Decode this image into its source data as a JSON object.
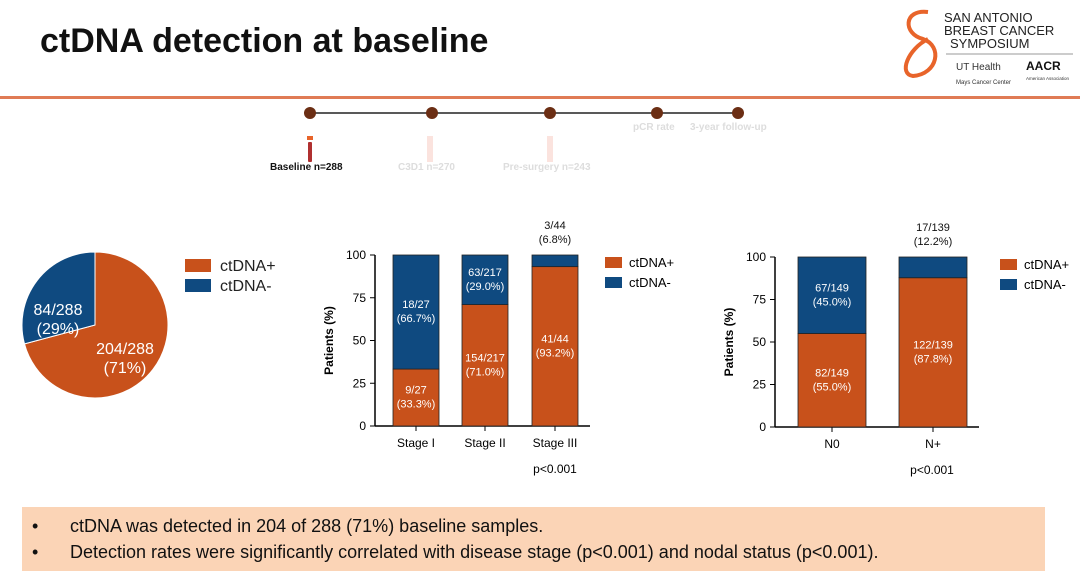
{
  "title": "ctDNA detection at baseline",
  "logo": {
    "text": "SAN ANTONIO BREAST CANCER SYMPOSIUM®",
    "partners": [
      "UT Health San Antonio Mays Cancer Center",
      "AACR American Association for Cancer Research"
    ]
  },
  "timeline": {
    "points": [
      {
        "label": "Baseline n=288",
        "active": true
      },
      {
        "label": "C3D1 n=270",
        "active": false
      },
      {
        "label": "Pre-surgery n=243",
        "active": false
      },
      {
        "label": "pCR rate",
        "active": false
      },
      {
        "label": "3-year follow-up",
        "active": false
      }
    ]
  },
  "colors": {
    "positive": "#c8511b",
    "negative": "#0f4a80",
    "accent": "#e07b55",
    "highlight": "#fbd4b6"
  },
  "chart_data": [
    {
      "type": "pie",
      "categories": [
        "ctDNA+",
        "ctDNA-"
      ],
      "values": [
        204,
        84
      ],
      "labels": [
        [
          "204/288",
          "(71%)"
        ],
        [
          "84/288",
          "(29%)"
        ]
      ],
      "legend": [
        "ctDNA+",
        "ctDNA-"
      ],
      "legend_position": "right"
    },
    {
      "type": "bar",
      "stacked": true,
      "categories": [
        "Stage I",
        "Stage II",
        "Stage III"
      ],
      "ylabel": "Patients (%)",
      "ylim": [
        0,
        100
      ],
      "yticks": [
        0,
        25,
        50,
        75,
        100
      ],
      "series": [
        {
          "name": "ctDNA+",
          "values": [
            33.3,
            71.0,
            93.2
          ],
          "labels": [
            [
              "9/27",
              "(33.3%)"
            ],
            [
              "154/217",
              "(71.0%)"
            ],
            [
              "41/44",
              "(93.2%)"
            ]
          ]
        },
        {
          "name": "ctDNA-",
          "values": [
            66.7,
            29.0,
            6.8
          ],
          "labels": [
            [
              "18/27",
              "(66.7%)"
            ],
            [
              "63/217",
              "(29.0%)"
            ],
            [
              "3/44",
              "(6.8%)"
            ]
          ]
        }
      ],
      "annotation": "p<0.001",
      "legend_position": "right"
    },
    {
      "type": "bar",
      "stacked": true,
      "categories": [
        "N0",
        "N+"
      ],
      "ylabel": "Patients (%)",
      "ylim": [
        0,
        100
      ],
      "yticks": [
        0,
        25,
        50,
        75,
        100
      ],
      "series": [
        {
          "name": "ctDNA+",
          "values": [
            55.0,
            87.8
          ],
          "labels": [
            [
              "82/149",
              "(55.0%)"
            ],
            [
              "122/139",
              "(87.8%)"
            ]
          ]
        },
        {
          "name": "ctDNA-",
          "values": [
            45.0,
            12.2
          ],
          "labels": [
            [
              "67/149",
              "(45.0%)"
            ],
            [
              "17/139",
              "(12.2%)"
            ]
          ]
        }
      ],
      "annotation": "p<0.001",
      "legend_position": "right"
    }
  ],
  "bullets": [
    "ctDNA was detected in 204 of 288 (71%) baseline samples.",
    "Detection rates were significantly correlated with disease stage (p<0.001) and nodal status (p<0.001)."
  ],
  "bullet_symbol": "•"
}
